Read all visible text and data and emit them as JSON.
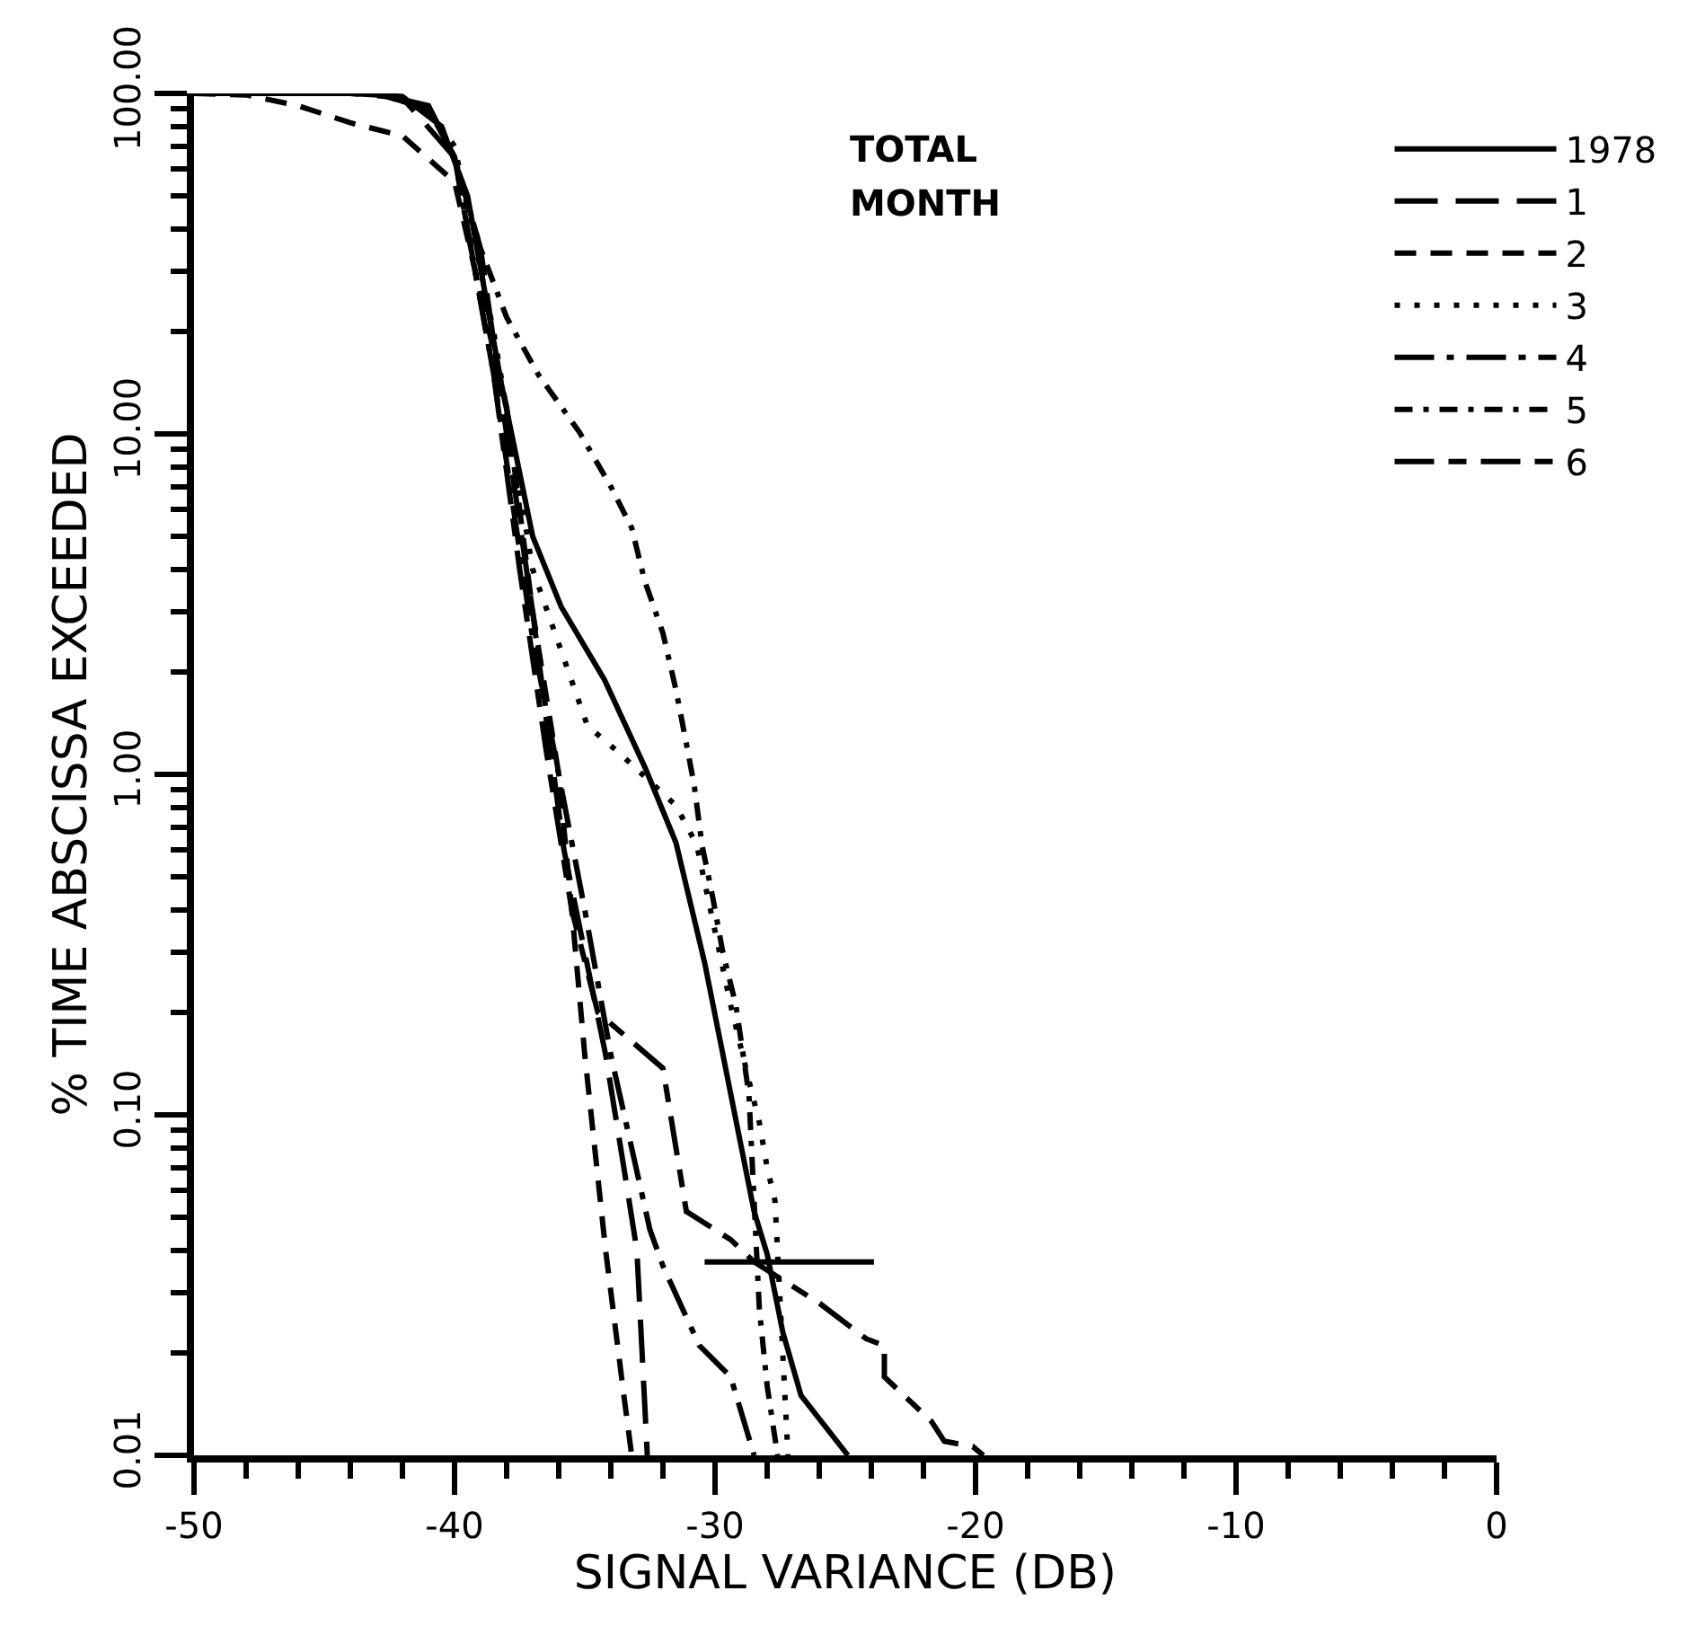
{
  "chart_data": {
    "type": "line",
    "xlabel": "SIGNAL VARIANCE (DB)",
    "ylabel": "% TIME ABSCISSA EXCEEDED",
    "annotations": [
      "TOTAL",
      "MONTH"
    ],
    "log": "y",
    "legend": "top right",
    "marker": "none",
    "xlim": [
      -50,
      0
    ],
    "ylim": [
      0.01,
      100
    ],
    "xticks": [
      -50,
      {
        "value": -48,
        "label": null
      },
      {
        "value": -46,
        "label": null
      },
      {
        "value": -44,
        "label": null
      },
      {
        "value": -42,
        "label": null
      },
      {
        "value": -40,
        "label": "-40"
      },
      {
        "value": -38,
        "label": null
      },
      {
        "value": -36,
        "label": null
      },
      {
        "value": -34,
        "label": null
      },
      {
        "value": -32,
        "label": null
      },
      -30,
      {
        "value": -28,
        "label": null
      },
      {
        "value": -26,
        "label": null
      },
      {
        "value": -24,
        "label": null
      },
      {
        "value": -22,
        "label": null
      },
      -20,
      {
        "value": -18,
        "label": null
      },
      {
        "value": -16,
        "label": null
      },
      {
        "value": -14,
        "label": null
      },
      {
        "value": -12,
        "label": null
      },
      -10,
      {
        "value": -8,
        "label": null
      },
      {
        "value": -6,
        "label": null
      },
      {
        "value": -4,
        "label": null
      },
      {
        "value": -2,
        "label": null
      },
      0
    ],
    "yticks": [
      {
        "value": 0.01,
        "label": "0.01"
      },
      {
        "value": 0.02,
        "label": null
      },
      {
        "value": 0.03,
        "label": null
      },
      {
        "value": 0.04,
        "label": null
      },
      {
        "value": 0.05,
        "label": null
      },
      {
        "value": 0.06,
        "label": null
      },
      {
        "value": 0.07,
        "label": null
      },
      {
        "value": 0.08,
        "label": null
      },
      {
        "value": 0.09,
        "label": null
      },
      {
        "value": 0.1,
        "label": "0.10"
      },
      {
        "value": 0.2,
        "label": null
      },
      {
        "value": 0.3,
        "label": null
      },
      {
        "value": 0.4,
        "label": null
      },
      {
        "value": 0.5,
        "label": null
      },
      {
        "value": 0.6,
        "label": null
      },
      {
        "value": 0.7,
        "label": null
      },
      {
        "value": 0.8,
        "label": null
      },
      {
        "value": 0.9,
        "label": null
      },
      {
        "value": 1,
        "label": "1.00"
      },
      {
        "value": 2,
        "label": null
      },
      {
        "value": 3,
        "label": null
      },
      {
        "value": 4,
        "label": null
      },
      {
        "value": 5,
        "label": null
      },
      {
        "value": 6,
        "label": null
      },
      {
        "value": 7,
        "label": null
      },
      {
        "value": 8,
        "label": null
      },
      {
        "value": 9,
        "label": null
      },
      {
        "value": 10,
        "label": "10.00"
      },
      {
        "value": 20,
        "label": null
      },
      {
        "value": 30,
        "label": null
      },
      {
        "value": 40,
        "label": null
      },
      {
        "value": 50,
        "label": null
      },
      {
        "value": 60,
        "label": null
      },
      {
        "value": 70,
        "label": null
      },
      {
        "value": 80,
        "label": null
      },
      {
        "value": 90,
        "label": null
      },
      {
        "value": 100,
        "label": "100.00"
      }
    ],
    "series": [
      {
        "name": "1978",
        "color": "#000000",
        "line_style": "solid",
        "x": [
          -50,
          -44,
          -42,
          -40.5,
          -39.5,
          -38.2,
          -37,
          -35.9,
          -34.25,
          -32.67,
          -31.5,
          -30.4,
          -28.5,
          -28.0,
          -27.4,
          -26.7,
          -24.9
        ],
        "values": [
          100,
          100,
          98,
          80,
          50,
          14,
          5,
          3.1,
          1.9,
          1.04,
          0.63,
          0.28,
          0.052,
          0.039,
          0.023,
          0.015,
          0.01
        ]
      },
      {
        "name": "1",
        "color": "#000000",
        "line_style": "dashed",
        "x": [
          -50,
          -44,
          -42,
          -40,
          -39,
          -38,
          -37,
          -36.5,
          -35.8,
          -35,
          -34.2,
          -33.5,
          -33,
          -32.8,
          -32.6
        ],
        "values": [
          100,
          100,
          97,
          65,
          35,
          10,
          3,
          1.5,
          0.6,
          0.3,
          0.15,
          0.07,
          0.04,
          0.02,
          0.01
        ]
      },
      {
        "name": "2",
        "color": "#000000",
        "line_style": "dashed",
        "x": [
          -50,
          -48,
          -46,
          -44,
          -42,
          -40,
          -38,
          -37,
          -36,
          -35.5,
          -35,
          -34.2,
          -33.5,
          -33.2
        ],
        "values": [
          100,
          99,
          92,
          82,
          75,
          55,
          12,
          3,
          1,
          0.4,
          0.15,
          0.04,
          0.015,
          0.01
        ]
      },
      {
        "name": "3",
        "color": "#000000",
        "line_style": "dotted",
        "x": [
          -50,
          -43,
          -41,
          -40,
          -38.5,
          -37,
          -34.9,
          -33.7,
          -31.5,
          -30.7,
          -29.4,
          -28.7,
          -28.3,
          -28.0,
          -27.7,
          -27.2
        ],
        "values": [
          100,
          100,
          90,
          70,
          20,
          4,
          1.39,
          1.16,
          0.81,
          0.62,
          0.21,
          0.126,
          0.095,
          0.07,
          0.056,
          0.01
        ]
      },
      {
        "name": "4",
        "color": "#000000",
        "line_style": "dashdot",
        "x": [
          -50,
          -43,
          -41,
          -40,
          -38.5,
          -37,
          -36,
          -35,
          -34,
          -32.5,
          -32.0,
          -30.6,
          -29.4,
          -28.5
        ],
        "values": [
          100,
          100,
          92,
          65,
          15,
          2.5,
          1,
          0.4,
          0.15,
          0.046,
          0.036,
          0.021,
          0.017,
          0.01
        ]
      },
      {
        "name": "5",
        "color": "#000000",
        "line_style": "dashdot",
        "x": [
          -50,
          -43,
          -41,
          -40,
          -39,
          -38,
          -36.8,
          -35.2,
          -34,
          -33.2,
          -32.7,
          -32,
          -31.5,
          -31.1,
          -30.8,
          -30.5,
          -30.1,
          -29.7,
          -29.2,
          -28.7,
          -28.3,
          -28,
          -27.6
        ],
        "values": [
          100,
          100,
          90,
          65,
          35,
          22,
          15,
          10.1,
          7,
          5.3,
          3.7,
          2.6,
          1.77,
          1.23,
          0.93,
          0.62,
          0.44,
          0.3,
          0.21,
          0.115,
          0.027,
          0.016,
          0.01
        ]
      },
      {
        "name": "6",
        "color": "#000000",
        "line_style": "dashed",
        "x": [
          -50,
          -43,
          -41,
          -40,
          -38.5,
          -37.5,
          -36.5,
          -35.5,
          -34.5,
          -32,
          -31.1,
          -29.4,
          -28.5,
          -27.2,
          -26,
          -24.2,
          -23.5,
          -23.5,
          -21.7,
          -21.2,
          -20.1,
          -19.7
        ],
        "values": [
          100,
          100,
          90,
          65,
          15,
          4,
          1.2,
          0.4,
          0.2,
          0.137,
          0.052,
          0.043,
          0.037,
          0.032,
          0.028,
          0.022,
          0.021,
          0.017,
          0.0126,
          0.011,
          0.0106,
          0.01
        ]
      },
      {
        "color": "#000000",
        "line_style": "solid",
        "x": [
          -30.4,
          -23.9
        ],
        "values": [
          0.037,
          0.037
        ]
      }
    ]
  }
}
